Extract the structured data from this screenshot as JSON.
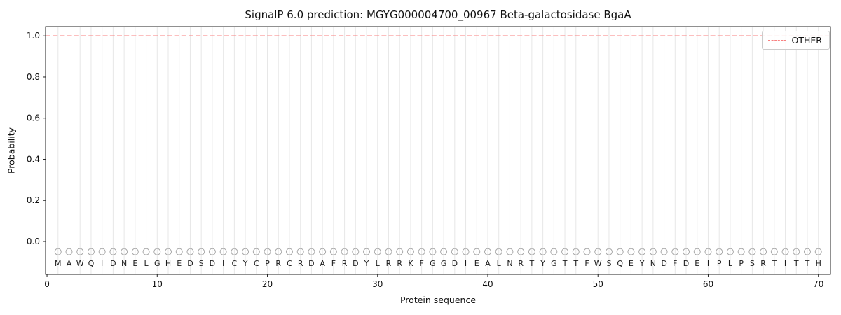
{
  "chart_data": {
    "type": "line",
    "title": "SignalP 6.0 prediction: MGYG000004700_00967 Beta-galactosidase BgaA",
    "xlabel": "Protein sequence",
    "ylabel": "Probability",
    "xlim": [
      -0.13,
      71.1
    ],
    "ylim": [
      -0.16,
      1.045
    ],
    "xticks": [
      0,
      10,
      20,
      30,
      40,
      50,
      60,
      70
    ],
    "yticks": [
      0.0,
      0.2,
      0.4,
      0.6,
      0.8,
      1.0
    ],
    "grid": "vertical-gridline-per-residue",
    "grid_color": "#e7e7e7",
    "spine_color": "#222222",
    "sequence": "MAWQIDNELGHEDSDICYCPRCRDAFRDYLRRKFGGDIEALNRTYGTTFWSQEYNDFDEIPLPSRTITTH",
    "sequence_marker": {
      "symbol": "circle",
      "marker_y": -0.05,
      "letter_y": -0.105,
      "marker_color": "#a6a6a6",
      "letter_color": "#1c1c1c"
    },
    "series": [
      {
        "name": "OTHER",
        "type": "hline",
        "y": 1.0,
        "x_start": -0.13,
        "x_end": 71.1,
        "color": "#f87f7f",
        "linestyle": "dashed"
      }
    ],
    "legend": {
      "position": "upper right",
      "entries": [
        "OTHER"
      ]
    }
  }
}
